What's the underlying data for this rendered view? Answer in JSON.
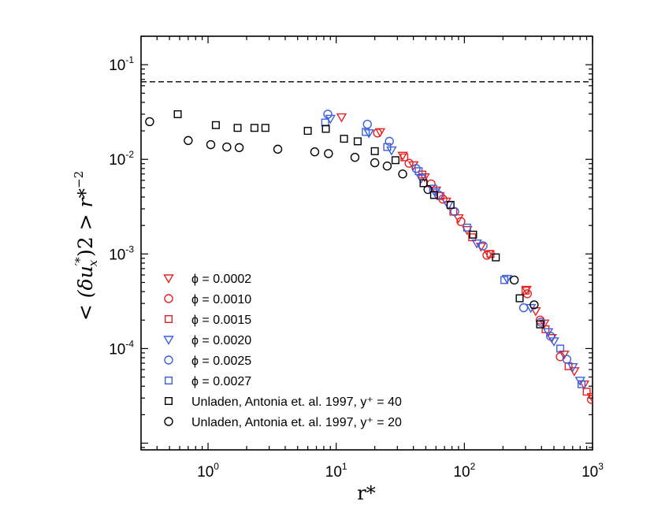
{
  "chart_data": {
    "type": "scatter",
    "xscale": "log",
    "yscale": "log",
    "xlim": [
      0.3,
      1000
    ],
    "ylim": [
      8.5e-06,
      0.2
    ],
    "xlabel": "r*",
    "ylabel": "< (δu'*x)2 > r*-2",
    "ylabel_parts": {
      "open": "<",
      "main": "(δu",
      "sup_prime": "′*",
      "sub": "x",
      "close_sup": ")2",
      "gt": ">",
      "r": "r*",
      "exp": "−2"
    },
    "x_ticks": [
      {
        "value": 1,
        "base": "10",
        "exp": "0"
      },
      {
        "value": 10,
        "base": "10",
        "exp": "1"
      },
      {
        "value": 100,
        "base": "10",
        "exp": "2"
      },
      {
        "value": 1000,
        "base": "10",
        "exp": "3"
      }
    ],
    "y_ticks": [
      {
        "value": 0.0001,
        "base": "10",
        "exp": "-4"
      },
      {
        "value": 0.001,
        "base": "10",
        "exp": "-3"
      },
      {
        "value": 0.01,
        "base": "10",
        "exp": "-2"
      },
      {
        "value": 0.1,
        "base": "10",
        "exp": "-1"
      }
    ],
    "reference_line": {
      "y": 0.066,
      "style": "dashed"
    },
    "legend_position": "bottom-left",
    "series": [
      {
        "name": "ϕ = 0.0002",
        "marker": "triangle-down",
        "color": "#e8201f",
        "x": [
          11,
          22,
          33,
          40,
          49,
          60,
          72,
          90,
          105,
          135,
          155,
          305,
          360,
          420,
          480,
          600,
          720,
          860,
          990
        ],
        "y": [
          0.028,
          0.0195,
          0.011,
          0.0087,
          0.0065,
          0.0047,
          0.0036,
          0.0024,
          0.0018,
          0.0012,
          0.001,
          0.00042,
          0.00025,
          0.000185,
          0.00013,
          8.7e-05,
          5.8e-05,
          4.2e-05,
          3.1e-05
        ]
      },
      {
        "name": "ϕ = 0.0010",
        "marker": "circle",
        "color": "#e8201f",
        "x": [
          21,
          37,
          55,
          68,
          94,
          150,
          310,
          390,
          560,
          980
        ],
        "y": [
          0.019,
          0.0091,
          0.0055,
          0.0038,
          0.0022,
          0.00097,
          0.00038,
          0.0002,
          8.2e-05,
          2.9e-05
        ]
      },
      {
        "name": "ϕ = 0.0015",
        "marker": "square",
        "color": "#e8201f",
        "x": [
          34,
          47,
          65,
          82,
          115,
          160,
          300,
          430,
          650,
          900
        ],
        "y": [
          0.0105,
          0.0069,
          0.0041,
          0.0028,
          0.0015,
          0.001,
          0.00041,
          0.00016,
          6.5e-05,
          3.5e-05
        ]
      },
      {
        "name": "ϕ = 0.0020",
        "marker": "triangle-down",
        "color": "#3a5fe0",
        "x": [
          9,
          18,
          27,
          46,
          59,
          75,
          125,
          215,
          330,
          450,
          500,
          700,
          800
        ],
        "y": [
          0.027,
          0.019,
          0.0125,
          0.0063,
          0.0045,
          0.0033,
          0.0013,
          0.00055,
          0.00027,
          0.00015,
          0.00012,
          6.4e-05,
          4.6e-05
        ]
      },
      {
        "name": "ϕ = 0.0025",
        "marker": "circle",
        "color": "#3a5fe0",
        "x": [
          8.6,
          17.5,
          26,
          42,
          63,
          84,
          140,
          290,
          395,
          470,
          630
        ],
        "y": [
          0.03,
          0.0235,
          0.0155,
          0.008,
          0.0042,
          0.0028,
          0.00122,
          0.00027,
          0.00019,
          0.000135,
          7.7e-05
        ]
      },
      {
        "name": "ϕ = 0.0027",
        "marker": "square",
        "color": "#3a5fe0",
        "x": [
          8.2,
          17,
          25,
          44,
          57,
          105,
          205,
          560,
          820
        ],
        "y": [
          0.0245,
          0.0195,
          0.0135,
          0.0075,
          0.0049,
          0.0019,
          0.00053,
          0.0001,
          4.2e-05
        ]
      },
      {
        "name": "Unladen, Antonia et. al. 1997, y⁺ = 40",
        "marker": "square",
        "color": "#000000",
        "x": [
          0.58,
          1.15,
          1.7,
          2.3,
          2.8,
          6,
          8.3,
          11.5,
          14.7,
          20,
          29,
          48,
          58,
          78,
          117,
          176,
          270,
          390
        ],
        "y": [
          0.03,
          0.023,
          0.0215,
          0.0215,
          0.0215,
          0.02,
          0.021,
          0.0165,
          0.0155,
          0.0122,
          0.0098,
          0.0056,
          0.0042,
          0.0033,
          0.0016,
          0.00092,
          0.00034,
          0.00018
        ]
      },
      {
        "name": "Unladen, Antonia et. al. 1997, y⁺ = 20",
        "marker": "circle",
        "color": "#000000",
        "x": [
          0.35,
          0.7,
          1.05,
          1.4,
          1.75,
          3.5,
          6.8,
          8.7,
          14,
          20,
          25,
          33,
          52,
          245,
          350
        ],
        "y": [
          0.025,
          0.0158,
          0.0143,
          0.0135,
          0.0133,
          0.0128,
          0.012,
          0.0115,
          0.0105,
          0.0092,
          0.0085,
          0.007,
          0.0048,
          0.00053,
          0.00029
        ]
      }
    ]
  }
}
